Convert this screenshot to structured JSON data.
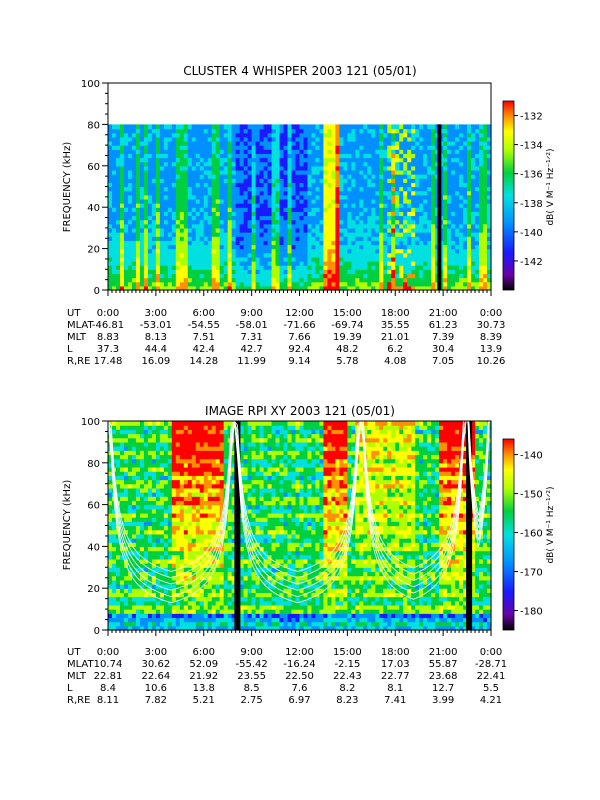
{
  "chart_data": [
    {
      "type": "heatmap",
      "title": "CLUSTER 4 WHISPER 2003 121 (05/01)",
      "ylabel": "FREQUENCY (kHz)",
      "ylim": [
        0,
        100
      ],
      "yticks": [
        "0",
        "20",
        "40",
        "60",
        "80",
        "100"
      ],
      "xticks": [
        "0:00",
        "3:00",
        "6:00",
        "9:00",
        "12:00",
        "15:00",
        "18:00",
        "21:00",
        "0:00"
      ],
      "colorbar": {
        "label": "dB( V M⁻¹ Hz⁻¹ᐟ²)",
        "range": [
          -144,
          -131
        ],
        "ticks": [
          "-132",
          "-134",
          "-136",
          "-138",
          "-140",
          "-142"
        ]
      },
      "ephemeris": [
        {
          "label": "UT",
          "values": [
            "0:00",
            "3:00",
            "6:00",
            "9:00",
            "12:00",
            "15:00",
            "18:00",
            "21:00",
            "0:00"
          ]
        },
        {
          "label": "MLAT",
          "values": [
            "-46.81",
            "-53.01",
            "-54.55",
            "-58.01",
            "-71.66",
            "-69.74",
            "35.55",
            "61.23",
            "30.73"
          ]
        },
        {
          "label": "MLT",
          "values": [
            "8.83",
            "8.13",
            "7.51",
            "7.31",
            "7.66",
            "19.39",
            "21.01",
            "7.39",
            "8.39"
          ]
        },
        {
          "label": "L",
          "values": [
            "37.3",
            "44.4",
            "42.4",
            "42.7",
            "92.4",
            "48.2",
            "6.2",
            "30.4",
            "13.9"
          ]
        },
        {
          "label": "R,RE",
          "values": [
            "17.48",
            "16.09",
            "14.28",
            "11.99",
            "9.14",
            "5.78",
            "4.08",
            "7.05",
            "10.26"
          ]
        }
      ]
    },
    {
      "type": "heatmap",
      "title": "IMAGE RPI XY 2003 121 (05/01)",
      "ylabel": "FREQUENCY (kHz)",
      "ylim": [
        0,
        100
      ],
      "yticks": [
        "0",
        "20",
        "40",
        "60",
        "80",
        "100"
      ],
      "xticks": [
        "0:00",
        "3:00",
        "6:00",
        "9:00",
        "12:00",
        "15:00",
        "18:00",
        "21:00",
        "0:00"
      ],
      "colorbar": {
        "label": "dB( V M⁻¹ Hz⁻¹ᐟ²)",
        "range": [
          -185,
          -136
        ],
        "ticks": [
          "-140",
          "-150",
          "-160",
          "-170",
          "-180"
        ]
      },
      "ephemeris": [
        {
          "label": "UT",
          "values": [
            "0:00",
            "3:00",
            "6:00",
            "9:00",
            "12:00",
            "15:00",
            "18:00",
            "21:00",
            "0:00"
          ]
        },
        {
          "label": "MLAT",
          "values": [
            "10.74",
            "30.62",
            "52.09",
            "-55.42",
            "-16.24",
            "-2.15",
            "17.03",
            "55.87",
            "-28.71"
          ]
        },
        {
          "label": "MLT",
          "values": [
            "22.81",
            "22.64",
            "21.92",
            "23.55",
            "22.50",
            "22.43",
            "22.77",
            "23.68",
            "22.41"
          ]
        },
        {
          "label": "L",
          "values": [
            "8.4",
            "10.6",
            "13.8",
            "8.5",
            "7.6",
            "8.2",
            "8.1",
            "12.7",
            "5.5"
          ]
        },
        {
          "label": "R,RE",
          "values": [
            "8.11",
            "7.82",
            "5.21",
            "2.75",
            "6.97",
            "8.23",
            "7.41",
            "3.99",
            "4.21"
          ]
        }
      ]
    }
  ]
}
